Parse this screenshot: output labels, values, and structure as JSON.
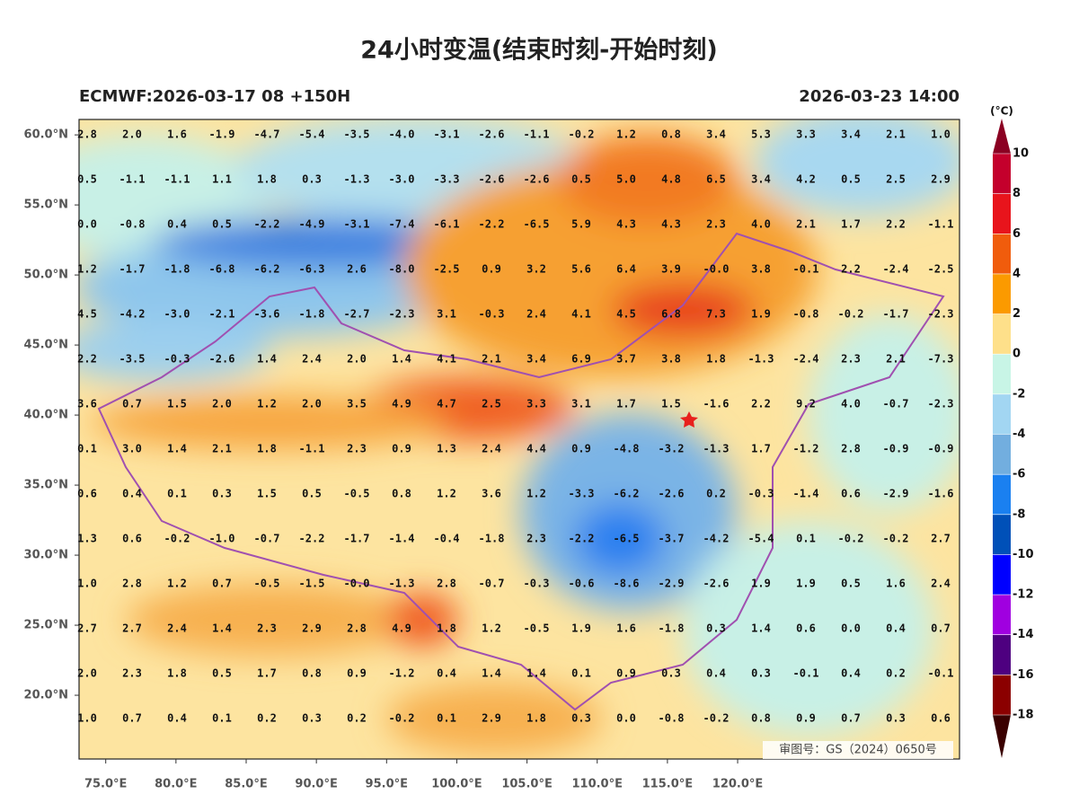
{
  "title": "24小时变温(结束时刻-开始时刻)",
  "subtitle_left": "ECMWF:2026-03-17 08 +150H",
  "subtitle_right": "2026-03-23 14:00",
  "unit": "(°C)",
  "watermark": "审图号：GS（2024）0650号",
  "latlim": [
    15.45,
    61.1
  ],
  "lonlim": [
    73.1,
    135.8
  ],
  "lat_ticks": [
    {
      "value": 60,
      "label": "60.0°N"
    },
    {
      "value": 55,
      "label": "55.0°N"
    },
    {
      "value": 50,
      "label": "50.0°N"
    },
    {
      "value": 45,
      "label": "45.0°N"
    },
    {
      "value": 40,
      "label": "40.0°N"
    },
    {
      "value": 35,
      "label": "35.0°N"
    },
    {
      "value": 30,
      "label": "30.0°N"
    },
    {
      "value": 25,
      "label": "25.0°N"
    },
    {
      "value": 20,
      "label": "20.0°N"
    }
  ],
  "lon_ticks": [
    {
      "value": 75,
      "label": "75.0°E"
    },
    {
      "value": 80,
      "label": "80.0°E"
    },
    {
      "value": 85,
      "label": "85.0°E"
    },
    {
      "value": 90,
      "label": "90.0°E"
    },
    {
      "value": 95,
      "label": "95.0°E"
    },
    {
      "value": 100,
      "label": "100.0°E"
    },
    {
      "value": 105,
      "label": "105.0°E"
    },
    {
      "value": 110,
      "label": "110.0°E"
    },
    {
      "value": 115,
      "label": "115.0°E"
    },
    {
      "value": 120,
      "label": "120.0°E"
    }
  ],
  "colorbar": {
    "labels": [
      10,
      8,
      6,
      4,
      2,
      0,
      -2,
      -4,
      -6,
      -8,
      -10,
      -12,
      -14,
      -16,
      -18
    ],
    "colors": [
      "#8b0022",
      "#c4002c",
      "#e8141c",
      "#f05c0c",
      "#fb9a00",
      "#fee08a",
      "#c8f5e6",
      "#a2d6f2",
      "#72aedf",
      "#1a80f0",
      "#0050b8",
      "#0000ff",
      "#a000e0",
      "#4e0080",
      "#8b0000",
      "#3a0000"
    ]
  },
  "grid": {
    "rows": [
      [
        "2.8",
        "2.0",
        "1.6",
        "-1.9",
        "-4.7",
        "-5.4",
        "-3.5",
        "-4.0",
        "-3.1",
        "-2.6",
        "-1.1",
        "-0.2",
        "1.2",
        "0.8",
        "3.4",
        "5.3",
        "3.3",
        "3.4",
        "2.1",
        "1.0"
      ],
      [
        "0.5",
        "-1.1",
        "-1.1",
        "1.1",
        "1.8",
        "0.3",
        "-1.3",
        "-3.0",
        "-3.3",
        "-2.6",
        "-2.6",
        "0.5",
        "5.0",
        "4.8",
        "6.5",
        "3.4",
        "4.2",
        "0.5",
        "2.5",
        "2.9"
      ],
      [
        "0.0",
        "-0.8",
        "0.4",
        "0.5",
        "-2.2",
        "-4.9",
        "-3.1",
        "-7.4",
        "-6.1",
        "-2.2",
        "-6.5",
        "5.9",
        "4.3",
        "4.3",
        "2.3",
        "4.0",
        "2.1",
        "1.7",
        "2.2",
        "-1.1"
      ],
      [
        "1.2",
        "-1.7",
        "-1.8",
        "-6.8",
        "-6.2",
        "-6.3",
        "2.6",
        "-8.0",
        "-2.5",
        "0.9",
        "3.2",
        "5.6",
        "6.4",
        "3.9",
        "-0.0",
        "3.8",
        "-0.1",
        "2.2",
        "-2.4",
        "-2.5"
      ],
      [
        "4.5",
        "-4.2",
        "-3.0",
        "-2.1",
        "-3.6",
        "-1.8",
        "-2.7",
        "-2.3",
        "3.1",
        "-0.3",
        "2.4",
        "4.1",
        "4.5",
        "6.8",
        "7.3",
        "1.9",
        "-0.8",
        "-0.2",
        "-1.7",
        "-2.3"
      ],
      [
        "2.2",
        "-3.5",
        "-0.3",
        "-2.6",
        "1.4",
        "2.4",
        "2.0",
        "1.4",
        "4.1",
        "2.1",
        "3.4",
        "6.9",
        "3.7",
        "3.8",
        "1.8",
        "-1.3",
        "-2.4",
        "2.3",
        "2.1",
        "-7.3"
      ],
      [
        "3.6",
        "0.7",
        "1.5",
        "2.0",
        "1.2",
        "2.0",
        "3.5",
        "4.9",
        "4.7",
        "2.5",
        "3.3",
        "3.1",
        "1.7",
        "1.5",
        "-1.6",
        "2.2",
        "9.2",
        "4.0",
        "-0.7",
        "-2.3"
      ],
      [
        "0.1",
        "3.0",
        "1.4",
        "2.1",
        "1.8",
        "-1.1",
        "2.3",
        "0.9",
        "1.3",
        "2.4",
        "4.4",
        "0.9",
        "-4.8",
        "-3.2",
        "-1.3",
        "1.7",
        "-1.2",
        "2.8",
        "-0.9",
        "-0.9"
      ],
      [
        "0.6",
        "0.4",
        "0.1",
        "0.3",
        "1.5",
        "0.5",
        "-0.5",
        "0.8",
        "1.2",
        "3.6",
        "1.2",
        "-3.3",
        "-6.2",
        "-2.6",
        "0.2",
        "-0.3",
        "-1.4",
        "0.6",
        "-2.9",
        "-1.6"
      ],
      [
        "1.3",
        "0.6",
        "-0.2",
        "-1.0",
        "-0.7",
        "-2.2",
        "-1.7",
        "-1.4",
        "-0.4",
        "-1.8",
        "2.3",
        "-2.2",
        "-6.5",
        "-3.7",
        "-4.2",
        "-5.4",
        "0.1",
        "-0.2",
        "-0.2",
        "2.7"
      ],
      [
        "1.0",
        "2.8",
        "1.2",
        "0.7",
        "-0.5",
        "-1.5",
        "-0.0",
        "-1.3",
        "2.8",
        "-0.7",
        "-0.3",
        "-0.6",
        "-8.6",
        "-2.9",
        "-2.6",
        "1.9",
        "1.9",
        "0.5",
        "1.6",
        "2.4"
      ],
      [
        "2.7",
        "2.7",
        "2.4",
        "1.4",
        "2.3",
        "2.9",
        "2.8",
        "4.9",
        "1.8",
        "1.2",
        "-0.5",
        "1.9",
        "1.6",
        "-1.8",
        "0.3",
        "1.4",
        "0.6",
        "0.0",
        "0.4",
        "0.7"
      ],
      [
        "2.0",
        "2.3",
        "1.8",
        "0.5",
        "1.7",
        "0.8",
        "0.9",
        "-1.2",
        "0.4",
        "1.4",
        "1.4",
        "0.1",
        "0.9",
        "0.3",
        "0.4",
        "0.3",
        "-0.1",
        "0.4",
        "0.2",
        "-0.1"
      ],
      [
        "1.0",
        "0.7",
        "0.4",
        "0.1",
        "0.2",
        "0.3",
        "0.2",
        "-0.2",
        "0.1",
        "2.9",
        "1.8",
        "0.3",
        "0.0",
        "-0.8",
        "-0.2",
        "0.8",
        "0.9",
        "0.7",
        "0.3",
        "0.6"
      ]
    ]
  }
}
